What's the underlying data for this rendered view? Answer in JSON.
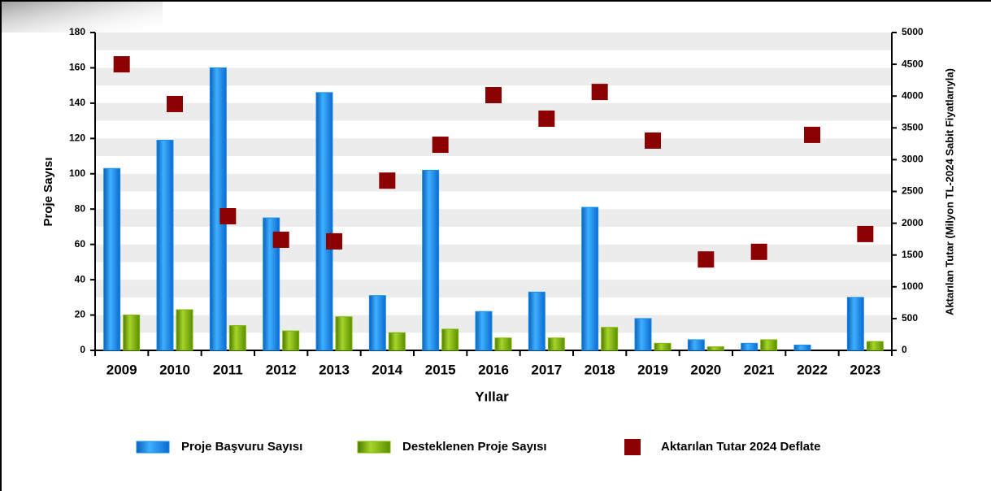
{
  "chart_data": {
    "type": "bar",
    "categories": [
      "2009",
      "2010",
      "2011",
      "2012",
      "2013",
      "2014",
      "2015",
      "2016",
      "2017",
      "2018",
      "2019",
      "2020",
      "2021",
      "2022",
      "2023"
    ],
    "series": [
      {
        "name": "Proje Başvuru Sayısı",
        "type": "bar",
        "color": "#1a8ee8",
        "values": [
          103,
          119,
          160,
          75,
          146,
          31,
          102,
          22,
          33,
          81,
          18,
          6,
          4,
          3,
          30
        ]
      },
      {
        "name": "Desteklenen Proje Sayısı",
        "type": "bar",
        "color": "#7fb800",
        "values": [
          20,
          23,
          14,
          11,
          19,
          10,
          12,
          7,
          7,
          13,
          4,
          2,
          6,
          0,
          5
        ]
      },
      {
        "name": "Aktarılan Tutar 2024 Deflate",
        "type": "scatter",
        "axis": "y2",
        "color": "#8b0000",
        "values": [
          4500,
          3875,
          2110,
          1740,
          1715,
          2670,
          3235,
          4015,
          3645,
          4065,
          3300,
          1430,
          1550,
          3390,
          1830
        ]
      }
    ],
    "xlabel": "Yıllar",
    "ylabel": "Proje Sayısı",
    "y2label": "Aktarılan Tutar (Milyon TL-2024 Sabit Fiyatlarıyla)",
    "ylim": [
      0,
      180
    ],
    "yticks": [
      0,
      20,
      40,
      60,
      80,
      100,
      120,
      140,
      160,
      180
    ],
    "y2lim": [
      0,
      5000
    ],
    "y2ticks": [
      0,
      500,
      1000,
      1500,
      2000,
      2500,
      3000,
      3500,
      4000,
      4500,
      5000
    ],
    "grid": true,
    "legend": "bottom"
  }
}
